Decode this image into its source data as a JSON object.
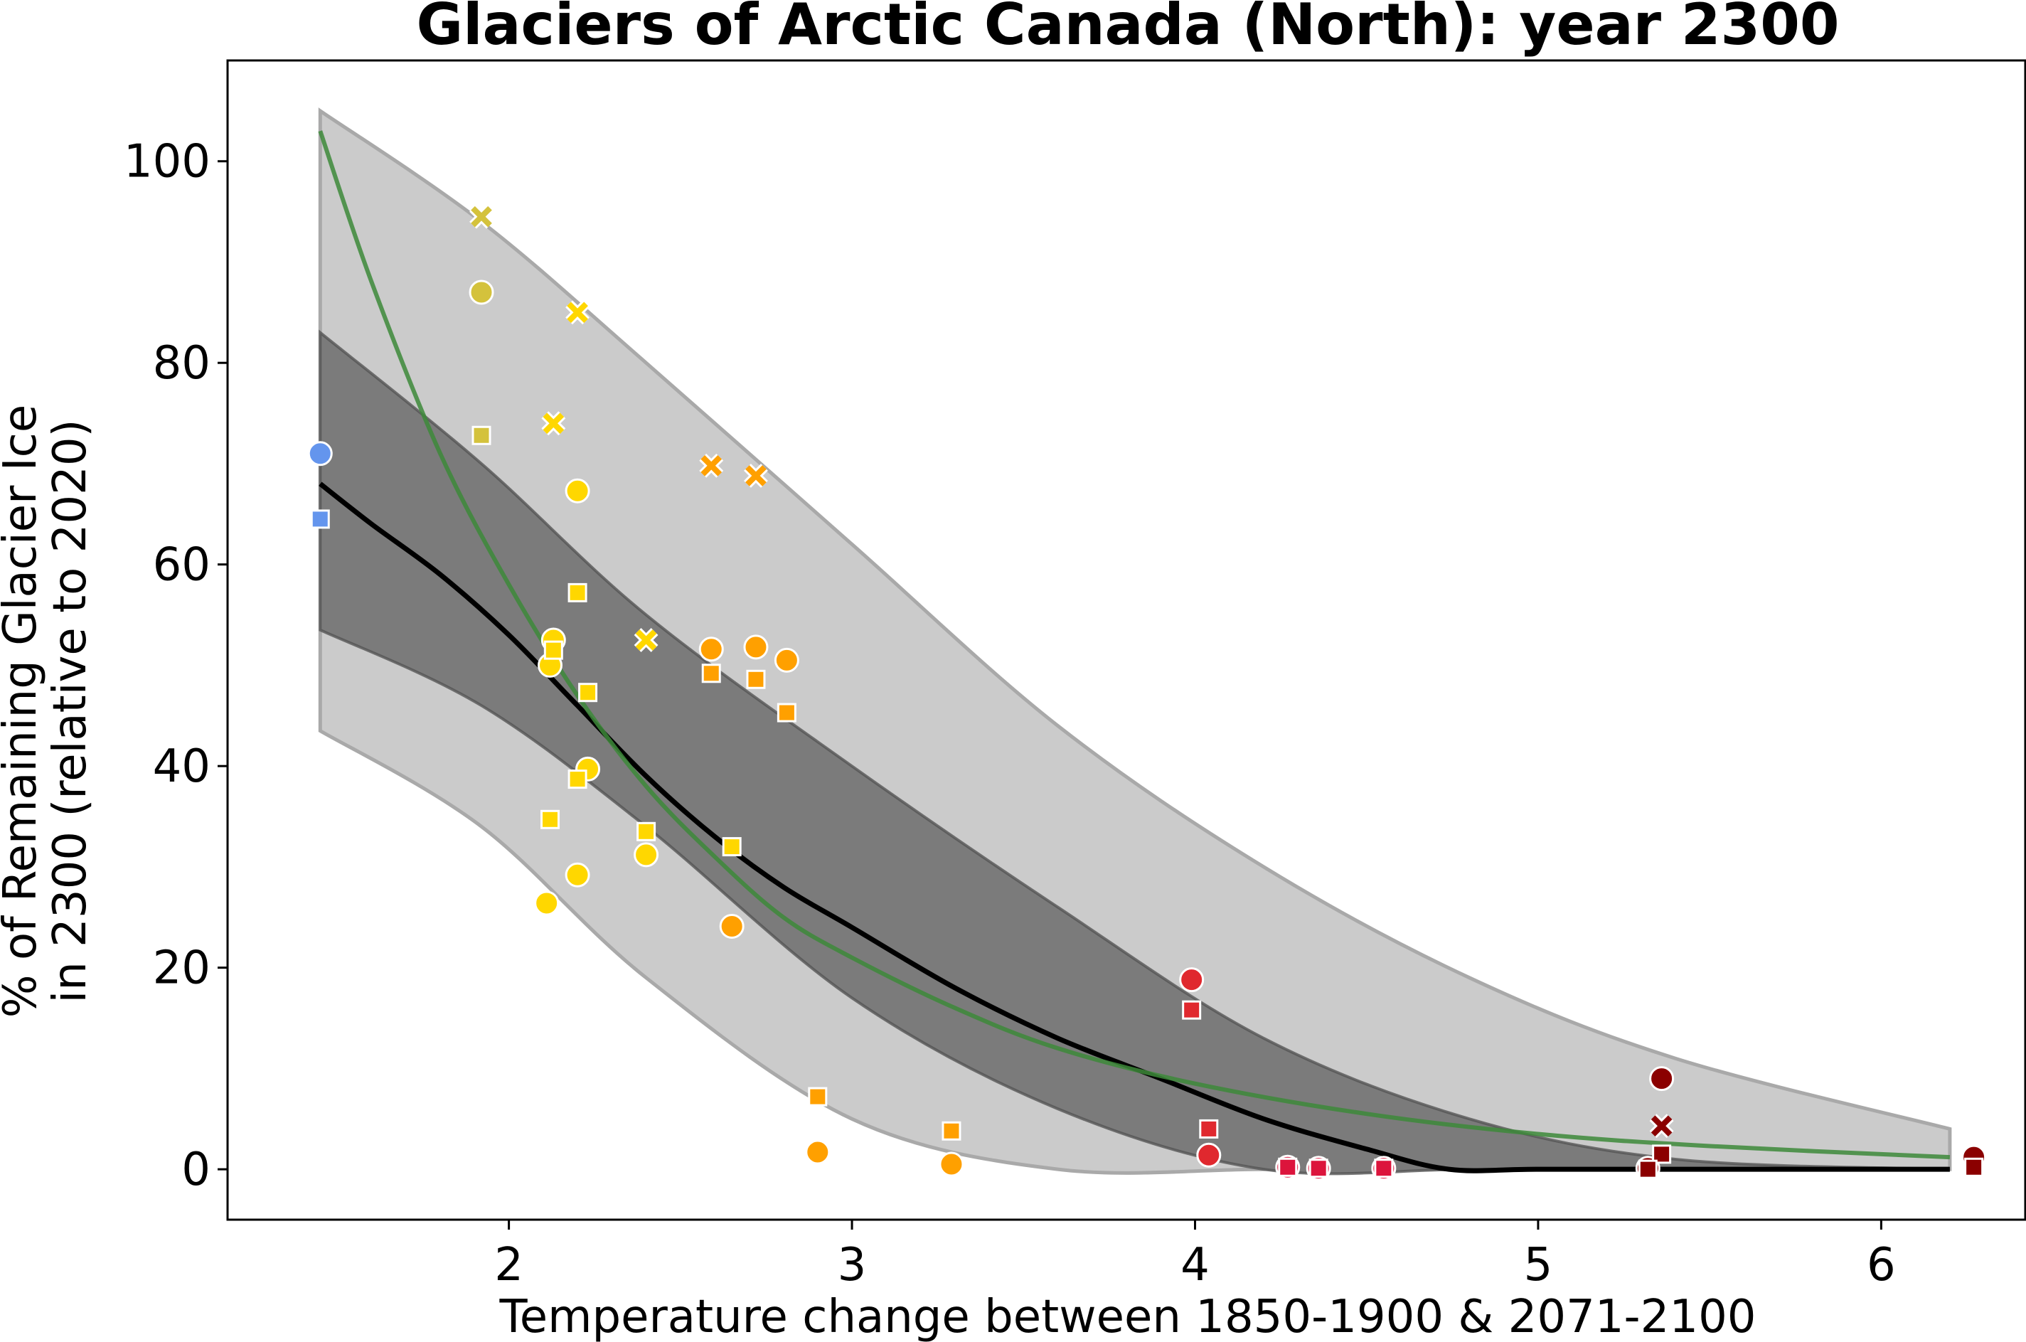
{
  "chart_data": {
    "type": "scatter",
    "title": "Glaciers of Arctic Canada (North):  year 2300",
    "xlabel": "Temperature change between 1850-1900 & 2071-2100",
    "ylabel_lines": [
      "% of Remaining Glacier Ice",
      "in 2300 (relative to 2020)"
    ],
    "xlim": [
      1.18,
      6.42
    ],
    "ylim": [
      -5,
      110
    ],
    "x_ticks": [
      2,
      3,
      4,
      5,
      6
    ],
    "y_ticks": [
      0,
      20,
      40,
      60,
      80,
      100
    ],
    "grid": false,
    "colors": {
      "outer_band": "#cbcbcb",
      "inner_band": "#7b7b7b",
      "median_line": "#000000",
      "green_fit": "#3d8a3a",
      "blue": "#6495ed",
      "olive": "#d4c23c",
      "yellow": "#ffd700",
      "orange": "#ffa000",
      "red": "#e0282e",
      "crimson": "#dc143c",
      "darkred": "#8b0000"
    },
    "bands": {
      "outer": {
        "x": [
          1.45,
          1.92,
          2.4,
          3.0,
          3.6,
          4.2,
          4.8,
          5.4,
          6.2
        ],
        "upper": [
          105,
          94,
          80,
          62,
          44,
          30,
          19,
          11,
          4
        ],
        "lower": [
          43.5,
          34,
          19,
          5,
          0,
          0,
          0,
          0,
          0
        ]
      },
      "inner": {
        "x": [
          1.45,
          1.92,
          2.4,
          3.0,
          3.6,
          4.2,
          4.8,
          5.4,
          6.2
        ],
        "upper": [
          83,
          70,
          55,
          40,
          26,
          13,
          5,
          1,
          0
        ],
        "lower": [
          53.5,
          46,
          34,
          17,
          6,
          0,
          0,
          0,
          0
        ]
      }
    },
    "median_curve": {
      "x": [
        1.45,
        1.6,
        1.8,
        2.0,
        2.2,
        2.4,
        2.6,
        2.8,
        3.0,
        3.3,
        3.6,
        3.9,
        4.2,
        4.5,
        4.74,
        5.0,
        5.5,
        6.2
      ],
      "y": [
        68,
        64,
        59,
        53,
        46,
        39,
        33,
        28,
        24,
        18,
        13,
        9,
        5,
        2,
        0,
        0,
        0,
        0
      ]
    },
    "green_curve": {
      "x": [
        1.45,
        1.6,
        1.8,
        2.0,
        2.2,
        2.4,
        2.6,
        2.8,
        3.0,
        3.3,
        3.6,
        4.0,
        4.5,
        5.0,
        5.5,
        6.2
      ],
      "y": [
        103,
        88,
        71,
        58,
        47,
        38,
        31,
        25,
        21,
        16,
        12,
        8.5,
        5.5,
        3.5,
        2.3,
        1.2
      ]
    },
    "series": [
      {
        "color": "blue",
        "marker": "circle",
        "points": [
          [
            1.45,
            71
          ]
        ]
      },
      {
        "color": "blue",
        "marker": "square",
        "points": [
          [
            1.45,
            64.5
          ]
        ]
      },
      {
        "color": "olive",
        "marker": "x",
        "points": [
          [
            1.92,
            94.5
          ]
        ]
      },
      {
        "color": "olive",
        "marker": "circle",
        "points": [
          [
            1.92,
            87
          ]
        ]
      },
      {
        "color": "olive",
        "marker": "square",
        "points": [
          [
            1.92,
            72.8
          ]
        ]
      },
      {
        "color": "yellow",
        "marker": "x",
        "points": [
          [
            2.2,
            85
          ],
          [
            2.13,
            74
          ],
          [
            2.4,
            52.5
          ]
        ]
      },
      {
        "color": "yellow",
        "marker": "circle",
        "points": [
          [
            2.2,
            67.3
          ],
          [
            2.13,
            52.5
          ],
          [
            2.12,
            50
          ],
          [
            2.23,
            39.7
          ],
          [
            2.4,
            31.2
          ],
          [
            2.2,
            29.2
          ],
          [
            2.11,
            26.4
          ]
        ]
      },
      {
        "color": "yellow",
        "marker": "square",
        "points": [
          [
            2.2,
            57.2
          ],
          [
            2.13,
            51.5
          ],
          [
            2.23,
            47.3
          ],
          [
            2.2,
            38.7
          ],
          [
            2.4,
            33.5
          ],
          [
            2.12,
            34.7
          ],
          [
            2.65,
            32
          ]
        ]
      },
      {
        "color": "orange",
        "marker": "x",
        "points": [
          [
            2.59,
            69.8
          ],
          [
            2.72,
            68.8
          ]
        ]
      },
      {
        "color": "orange",
        "marker": "circle",
        "points": [
          [
            2.59,
            51.6
          ],
          [
            2.72,
            51.8
          ],
          [
            2.81,
            50.5
          ],
          [
            2.65,
            24.1
          ],
          [
            2.9,
            1.7
          ],
          [
            3.29,
            0.5
          ]
        ]
      },
      {
        "color": "orange",
        "marker": "square",
        "points": [
          [
            2.59,
            49.2
          ],
          [
            2.72,
            48.6
          ],
          [
            2.81,
            45.3
          ],
          [
            2.9,
            7.2
          ],
          [
            3.29,
            3.8
          ]
        ]
      },
      {
        "color": "red",
        "marker": "circle",
        "points": [
          [
            3.99,
            18.8
          ],
          [
            4.04,
            1.4
          ]
        ]
      },
      {
        "color": "red",
        "marker": "square",
        "points": [
          [
            3.99,
            15.8
          ],
          [
            4.04,
            4
          ]
        ]
      },
      {
        "color": "crimson",
        "marker": "circle",
        "points": [
          [
            4.27,
            0.2
          ],
          [
            4.36,
            0.1
          ],
          [
            4.55,
            0.1
          ]
        ]
      },
      {
        "color": "crimson",
        "marker": "square",
        "points": [
          [
            4.27,
            0.2
          ],
          [
            4.36,
            0.1
          ],
          [
            4.55,
            0.1
          ]
        ]
      },
      {
        "color": "darkred",
        "marker": "circle",
        "points": [
          [
            5.36,
            9
          ],
          [
            6.27,
            1.2
          ],
          [
            5.32,
            0.1
          ]
        ]
      },
      {
        "color": "darkred",
        "marker": "x",
        "points": [
          [
            5.36,
            4.3
          ]
        ]
      },
      {
        "color": "darkred",
        "marker": "square",
        "points": [
          [
            5.36,
            1.5
          ],
          [
            6.27,
            0.2
          ],
          [
            5.32,
            0
          ]
        ]
      }
    ]
  }
}
